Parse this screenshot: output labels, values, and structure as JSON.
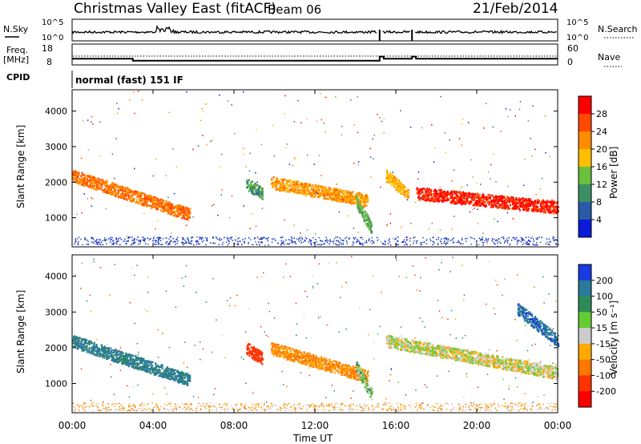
{
  "header": {
    "title": "Christmas Valley East (fitACF)",
    "beam": "Beam 06",
    "date": "21/Feb/2014"
  },
  "top_panels": {
    "nsky_label": "N.Sky",
    "nsearch_label": "N.Search",
    "nsky_ticks": [
      "10^5",
      "10^0"
    ],
    "nsearch_ticks": [
      "10^5",
      "10^0"
    ],
    "freq_label_1": "Freq.",
    "freq_label_2": "[MHz]",
    "freq_ticks": [
      "18",
      "8"
    ],
    "nave_label": "Nave",
    "nave_ticks": [
      "60",
      "0"
    ],
    "cpid_label": "CPID",
    "cpid_value": "normal (fast) 151 IF"
  },
  "colorbars": {
    "power": {
      "label": "Power [dB]",
      "ticks": [
        "28",
        "24",
        "20",
        "16",
        "12",
        "8",
        "4"
      ],
      "colors": [
        "#ff0000",
        "#ff4a00",
        "#ff8c00",
        "#ffbf00",
        "#6bbf3a",
        "#3c8f64",
        "#2a5aa8",
        "#0a1cd8"
      ]
    },
    "velocity": {
      "label": "Velocity [m s⁻¹]",
      "ticks": [
        "200",
        "100",
        "50",
        "15",
        "-15",
        "-50",
        "-100",
        "-200"
      ],
      "colors": [
        "#1a3adf",
        "#2a7a9a",
        "#2e8b57",
        "#66cc33",
        "#cccccc",
        "#ffaa00",
        "#ff7700",
        "#ff3300",
        "#ff0000"
      ]
    }
  },
  "axes": {
    "y_label": "Slant Range [km]",
    "y_ticks": [
      "4000",
      "3000",
      "2000",
      "1000"
    ],
    "x_label": "Time UT",
    "x_ticks": [
      "00:00",
      "04:00",
      "08:00",
      "12:00",
      "16:00",
      "20:00",
      "00:00"
    ]
  },
  "chart_data": [
    {
      "type": "line",
      "title": "N.Sky / N.Search",
      "x_range_hours": [
        0,
        24
      ],
      "y_scale": "log",
      "ylim": [
        1,
        100000
      ]
    },
    {
      "type": "line",
      "title": "Freq. [MHz] / Nave",
      "x": [
        0,
        3,
        3,
        15.2,
        15.2,
        15.4,
        15.4,
        16.8,
        16.8,
        17.0,
        17.0,
        24
      ],
      "series": [
        {
          "name": "Freq.",
          "values": [
            11,
            11,
            10,
            10,
            12,
            12,
            11,
            11,
            12,
            12,
            11,
            11
          ]
        }
      ],
      "ylim": [
        8,
        18
      ]
    },
    {
      "type": "heatmap",
      "title": "Power [dB]",
      "xlabel": "Time UT",
      "ylabel": "Slant Range [km]",
      "x_range_hours": [
        0,
        24
      ],
      "ylim": [
        180,
        4600
      ],
      "color_range": [
        0,
        30
      ],
      "regions": [
        {
          "t0": 0.0,
          "t1": 5.8,
          "r0": 2200,
          "r1": 1100,
          "value": 22
        },
        {
          "t0": 8.6,
          "t1": 9.4,
          "r0": 1950,
          "r1": 1700,
          "value": 10
        },
        {
          "t0": 9.8,
          "t1": 14.6,
          "r0": 2000,
          "r1": 1500,
          "value": 20
        },
        {
          "t0": 14.0,
          "t1": 14.8,
          "r0": 1500,
          "r1": 700,
          "value": 12
        },
        {
          "t0": 15.5,
          "t1": 16.6,
          "r0": 2200,
          "r1": 1700,
          "value": 18
        },
        {
          "t0": 17.0,
          "t1": 24.0,
          "r0": 1700,
          "r1": 1300,
          "value": 27
        }
      ]
    },
    {
      "type": "heatmap",
      "title": "Velocity [m s⁻¹]",
      "xlabel": "Time UT",
      "ylabel": "Slant Range [km]",
      "x_range_hours": [
        0,
        24
      ],
      "ylim": [
        180,
        4600
      ],
      "color_range": [
        -200,
        200
      ],
      "regions": [
        {
          "t0": 0.0,
          "t1": 5.8,
          "r0": 2200,
          "r1": 1100,
          "value": 120
        },
        {
          "t0": 8.6,
          "t1": 9.4,
          "r0": 2000,
          "r1": 1700,
          "value": -150
        },
        {
          "t0": 9.8,
          "t1": 14.6,
          "r0": 2000,
          "r1": 1200,
          "value": -60
        },
        {
          "t0": 14.0,
          "t1": 14.8,
          "r0": 1500,
          "r1": 700,
          "value": 30
        },
        {
          "t0": 15.5,
          "t1": 24.0,
          "r0": 2200,
          "r1": 1300,
          "value": 0
        },
        {
          "t0": 22.0,
          "t1": 24.0,
          "r0": 3100,
          "r1": 2200,
          "value": 180
        }
      ]
    }
  ]
}
